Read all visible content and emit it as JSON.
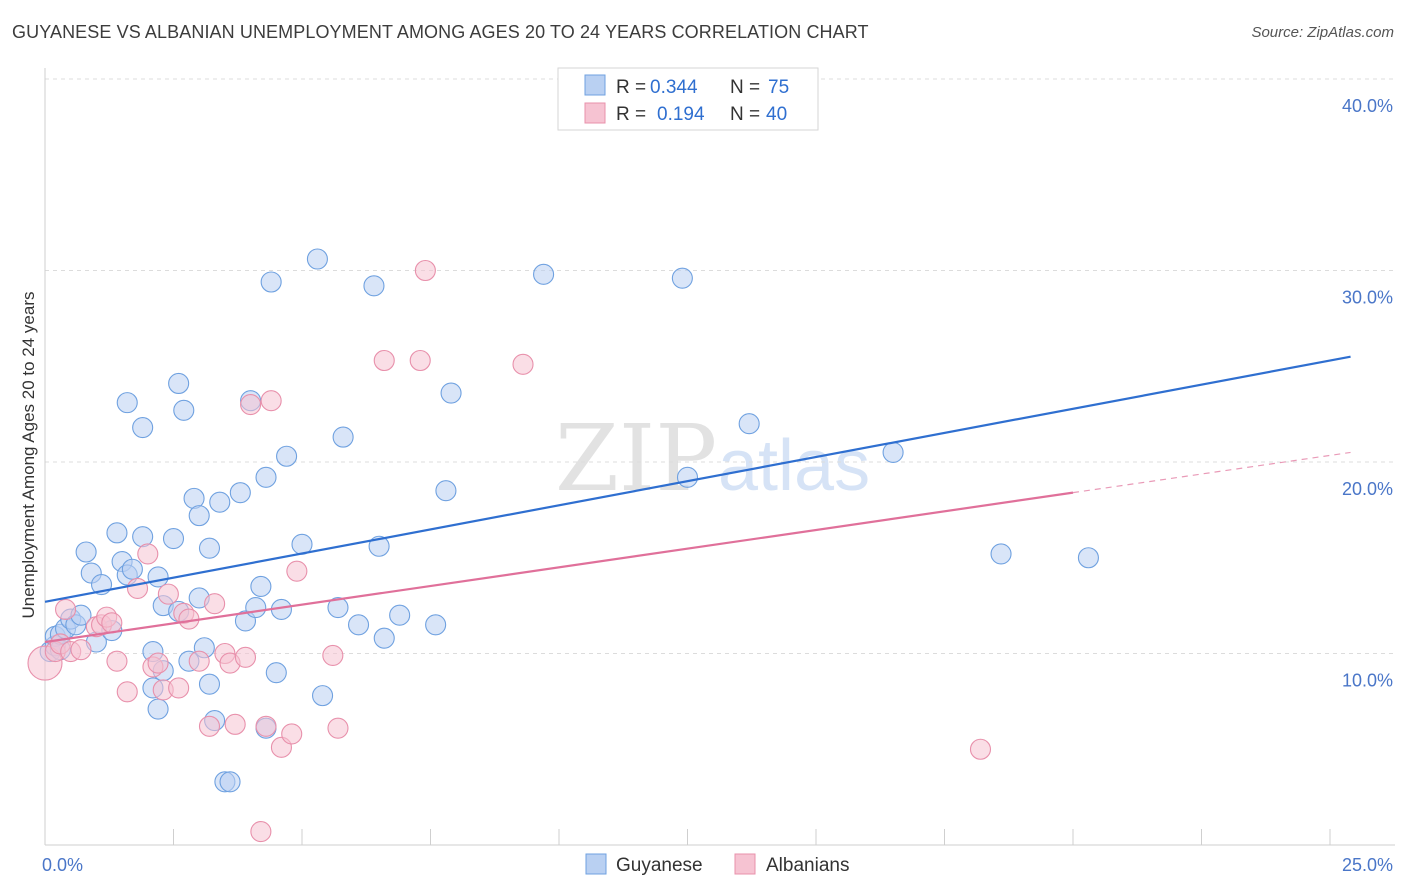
{
  "title": "GUYANESE VS ALBANIAN UNEMPLOYMENT AMONG AGES 20 TO 24 YEARS CORRELATION CHART",
  "source": "Source: ZipAtlas.com",
  "watermark": {
    "zip": "ZIP",
    "atlas": "atlas"
  },
  "chart_data": {
    "type": "scatter",
    "title": "GUYANESE VS ALBANIAN UNEMPLOYMENT AMONG AGES 20 TO 24 YEARS CORRELATION CHART",
    "xlabel": "",
    "ylabel": "Unemployment Among Ages 20 to 24 years",
    "xlim": [
      0,
      25
    ],
    "ylim": [
      0,
      40
    ],
    "x_ticks": [
      {
        "value": 0,
        "label": "0.0%"
      },
      {
        "value": 25,
        "label": "25.0%"
      }
    ],
    "y_ticks": [
      {
        "value": 10,
        "label": "10.0%"
      },
      {
        "value": 20,
        "label": "20.0%"
      },
      {
        "value": 30,
        "label": "30.0%"
      },
      {
        "value": 40,
        "label": "40.0%"
      }
    ],
    "grid": true,
    "legend_placement": "top-center",
    "legend": [
      {
        "r_label": "R =",
        "r": "0.344",
        "n_label": "N =",
        "n": "75"
      },
      {
        "r_label": "R =",
        "r": "0.194",
        "n_label": "N =",
        "n": "40"
      }
    ],
    "series": [
      {
        "name": "Guyanese",
        "color": "#6fa1e0",
        "fill": "#b9d0f2",
        "line_color": "#2f6fd0",
        "trend": {
          "x0": 0,
          "y0": 12.7,
          "x1": 25.4,
          "y1": 25.5
        },
        "points": [
          [
            0.1,
            10.1
          ],
          [
            0.2,
            10.4
          ],
          [
            0.2,
            10.9
          ],
          [
            0.3,
            10.2
          ],
          [
            0.3,
            11.0
          ],
          [
            0.4,
            11.3
          ],
          [
            0.5,
            11.8
          ],
          [
            0.6,
            11.5
          ],
          [
            0.7,
            12.0
          ],
          [
            0.8,
            15.3
          ],
          [
            0.9,
            14.2
          ],
          [
            1.0,
            10.6
          ],
          [
            1.1,
            13.6
          ],
          [
            1.3,
            11.2
          ],
          [
            1.4,
            16.3
          ],
          [
            1.5,
            14.8
          ],
          [
            1.6,
            14.1
          ],
          [
            1.7,
            14.4
          ],
          [
            1.6,
            23.1
          ],
          [
            1.9,
            16.1
          ],
          [
            1.9,
            21.8
          ],
          [
            2.1,
            10.1
          ],
          [
            2.1,
            8.2
          ],
          [
            2.2,
            14.0
          ],
          [
            2.2,
            7.1
          ],
          [
            2.3,
            9.1
          ],
          [
            2.3,
            12.5
          ],
          [
            2.5,
            16.0
          ],
          [
            2.6,
            12.2
          ],
          [
            2.6,
            24.1
          ],
          [
            2.7,
            22.7
          ],
          [
            2.8,
            9.6
          ],
          [
            2.9,
            18.1
          ],
          [
            3.0,
            17.2
          ],
          [
            3.0,
            12.9
          ],
          [
            3.1,
            10.3
          ],
          [
            3.2,
            8.4
          ],
          [
            3.2,
            15.5
          ],
          [
            3.3,
            6.5
          ],
          [
            3.4,
            17.9
          ],
          [
            3.5,
            3.3
          ],
          [
            3.6,
            3.3
          ],
          [
            3.8,
            18.4
          ],
          [
            3.9,
            11.7
          ],
          [
            4.0,
            23.2
          ],
          [
            4.1,
            12.4
          ],
          [
            4.2,
            13.5
          ],
          [
            4.3,
            19.2
          ],
          [
            4.3,
            6.1
          ],
          [
            4.4,
            29.4
          ],
          [
            4.5,
            9.0
          ],
          [
            4.6,
            12.3
          ],
          [
            4.7,
            20.3
          ],
          [
            5.0,
            15.7
          ],
          [
            5.3,
            30.6
          ],
          [
            5.4,
            7.8
          ],
          [
            5.7,
            12.4
          ],
          [
            5.8,
            21.3
          ],
          [
            6.1,
            11.5
          ],
          [
            6.4,
            29.2
          ],
          [
            6.5,
            15.6
          ],
          [
            6.6,
            10.8
          ],
          [
            6.9,
            12.0
          ],
          [
            7.6,
            11.5
          ],
          [
            7.8,
            18.5
          ],
          [
            7.9,
            23.6
          ],
          [
            9.7,
            29.8
          ],
          [
            12.4,
            29.6
          ],
          [
            12.5,
            19.2
          ],
          [
            13.7,
            22.0
          ],
          [
            16.5,
            20.5
          ],
          [
            18.6,
            15.2
          ],
          [
            20.3,
            15.0
          ]
        ]
      },
      {
        "name": "Albanians",
        "color": "#e890ab",
        "fill": "#f6c3d2",
        "line_color": "#e0709a",
        "trend": {
          "x0": 0,
          "y0": 10.6,
          "x1": 20.0,
          "y1": 18.4
        },
        "trend_dashed": {
          "x0": 20.0,
          "y0": 18.4,
          "x1": 25.4,
          "y1": 20.5
        },
        "points": [
          [
            0.0,
            9.5
          ],
          [
            0.2,
            10.1
          ],
          [
            0.3,
            10.5
          ],
          [
            0.4,
            12.3
          ],
          [
            0.5,
            10.1
          ],
          [
            0.7,
            10.2
          ],
          [
            1.0,
            11.4
          ],
          [
            1.1,
            11.5
          ],
          [
            1.2,
            11.9
          ],
          [
            1.3,
            11.6
          ],
          [
            1.4,
            9.6
          ],
          [
            1.6,
            8.0
          ],
          [
            1.8,
            13.4
          ],
          [
            2.0,
            15.2
          ],
          [
            2.1,
            9.3
          ],
          [
            2.2,
            9.5
          ],
          [
            2.3,
            8.1
          ],
          [
            2.4,
            13.1
          ],
          [
            2.6,
            8.2
          ],
          [
            2.7,
            12.1
          ],
          [
            2.8,
            11.8
          ],
          [
            3.0,
            9.6
          ],
          [
            3.2,
            6.2
          ],
          [
            3.3,
            12.6
          ],
          [
            3.5,
            10.0
          ],
          [
            3.6,
            9.5
          ],
          [
            3.7,
            6.3
          ],
          [
            3.9,
            9.8
          ],
          [
            4.0,
            23.0
          ],
          [
            4.2,
            0.7
          ],
          [
            4.3,
            6.2
          ],
          [
            4.4,
            23.2
          ],
          [
            4.6,
            5.1
          ],
          [
            4.8,
            5.8
          ],
          [
            4.9,
            14.3
          ],
          [
            5.6,
            9.9
          ],
          [
            5.7,
            6.1
          ],
          [
            6.6,
            25.3
          ],
          [
            7.3,
            25.3
          ],
          [
            7.4,
            30.0
          ],
          [
            9.3,
            25.1
          ],
          [
            18.2,
            5.0
          ]
        ]
      }
    ]
  }
}
